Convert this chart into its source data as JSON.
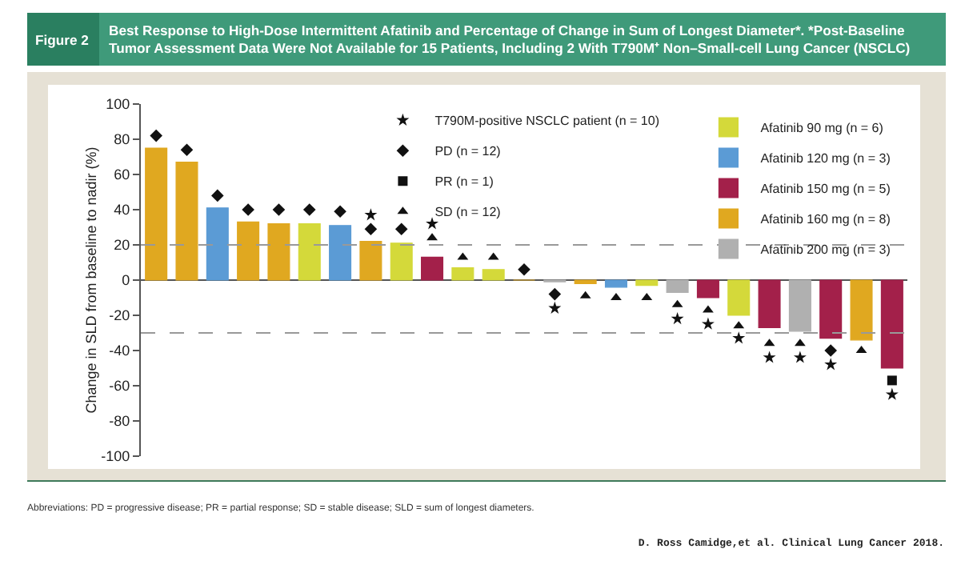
{
  "chart_data": {
    "type": "bar",
    "title": "Best Response to High-Dose Intermittent Afatinib and Percentage of Change in Sum of Longest Diameter*. *Post-Baseline Tumor Assessment Data Were Not Available for 15 Patients, Including 2 With T790M⁺ Non–Small-cell Lung Cancer (NSCLC)",
    "ylabel": "Change in SLD from baseline to nadir (%)",
    "annotations": [
      "Figure 2",
      "Abbreviations: PD = progressive disease; PR = partial response; SD = stable disease; SLD = sum of longest diameters.",
      "D. Ross Camidge,et al. Clinical Lung Cancer 2018."
    ],
    "categories": [
      null,
      null,
      null,
      null,
      null,
      null,
      null,
      null,
      null,
      null,
      null,
      null,
      null,
      null,
      null,
      null,
      null,
      null,
      null,
      null,
      null,
      null,
      null,
      null,
      null
    ],
    "series": [
      {
        "name": "Afatinib 90 mg (n = 6)",
        "color": "#d4d93a",
        "values": [
          null,
          null,
          null,
          null,
          null,
          32,
          null,
          null,
          21,
          null,
          7,
          6,
          null,
          null,
          null,
          null,
          -3,
          null,
          null,
          -20,
          null,
          null,
          null,
          null,
          null
        ]
      },
      {
        "name": "Afatinib 120 mg (n = 3)",
        "color": "#5b9bd5",
        "values": [
          null,
          null,
          41,
          null,
          null,
          null,
          31,
          null,
          null,
          null,
          null,
          null,
          null,
          null,
          null,
          -4,
          null,
          null,
          null,
          null,
          null,
          null,
          null,
          null,
          null
        ]
      },
      {
        "name": "Afatinib 150 mg (n = 5)",
        "color": "#a3204a",
        "values": [
          null,
          null,
          null,
          null,
          null,
          null,
          null,
          null,
          null,
          13,
          null,
          null,
          null,
          null,
          null,
          null,
          null,
          null,
          -10,
          null,
          -27,
          null,
          -33,
          null,
          -50
        ]
      },
      {
        "name": "Afatinib 160 mg (n = 8)",
        "color": "#e0a820",
        "values": [
          75,
          67,
          null,
          33,
          32,
          null,
          null,
          22,
          null,
          null,
          null,
          null,
          0,
          null,
          -2,
          null,
          null,
          null,
          null,
          null,
          null,
          null,
          null,
          -34,
          null
        ]
      },
      {
        "name": "Afatinib 200 mg (n = 3)",
        "color": "#b0b0b0",
        "values": [
          null,
          null,
          null,
          null,
          null,
          null,
          null,
          null,
          null,
          null,
          null,
          null,
          null,
          -1,
          null,
          null,
          null,
          -7,
          null,
          null,
          null,
          -29,
          null,
          null,
          null
        ]
      },
      {
        "type": "scatter",
        "marker": "star",
        "name": "T790M-positive NSCLC patient (n = 10)",
        "color": "#111111",
        "values": [
          null,
          null,
          null,
          null,
          null,
          null,
          null,
          37,
          null,
          32,
          null,
          null,
          null,
          -16,
          null,
          null,
          null,
          -22,
          -25,
          -33,
          -44,
          -44,
          -48,
          null,
          -65
        ]
      },
      {
        "type": "scatter",
        "marker": "diamond",
        "name": "PD (n = 12)",
        "color": "#111111",
        "values": [
          82,
          74,
          48,
          40,
          40,
          40,
          39,
          29,
          29,
          null,
          null,
          null,
          6,
          -8,
          null,
          null,
          null,
          null,
          null,
          null,
          null,
          null,
          -40,
          null,
          null
        ]
      },
      {
        "type": "scatter",
        "marker": "square",
        "name": "PR (n = 1)",
        "color": "#111111",
        "values": [
          null,
          null,
          null,
          null,
          null,
          null,
          null,
          null,
          null,
          null,
          null,
          null,
          null,
          null,
          null,
          null,
          null,
          null,
          null,
          null,
          null,
          null,
          null,
          null,
          -57
        ]
      },
      {
        "type": "scatter",
        "marker": "triangle",
        "name": "SD (n = 12)",
        "color": "#111111",
        "values": [
          null,
          null,
          null,
          null,
          null,
          null,
          null,
          null,
          null,
          24,
          13,
          13,
          null,
          null,
          -9,
          -10,
          -10,
          -14,
          -17,
          -26,
          -36,
          -36,
          null,
          -40,
          null
        ]
      }
    ],
    "ylim": [
      -100,
      100
    ],
    "yticks": [
      -100,
      -80,
      -60,
      -40,
      -20,
      0,
      20,
      40,
      60,
      80,
      100
    ],
    "ref_lines": [
      {
        "axis": "y",
        "value": 20,
        "color": "#999999",
        "line_style": "dashed"
      },
      {
        "axis": "y",
        "value": -30,
        "color": "#999999",
        "line_style": "dashed"
      }
    ],
    "grid": false,
    "legend": "top right"
  }
}
